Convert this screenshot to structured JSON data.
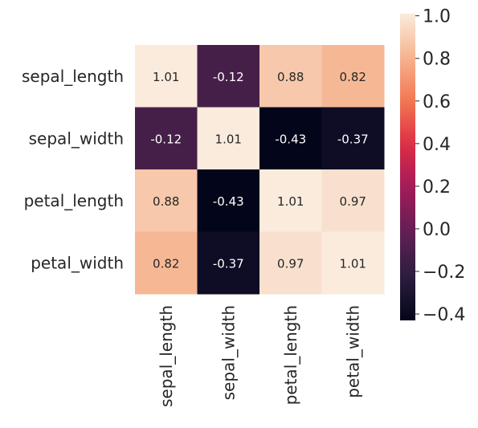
{
  "chart_data": {
    "type": "heatmap",
    "rows": [
      "sepal_length",
      "sepal_width",
      "petal_length",
      "petal_width"
    ],
    "columns": [
      "sepal_length",
      "sepal_width",
      "petal_length",
      "petal_width"
    ],
    "values": [
      [
        1.01,
        -0.12,
        0.88,
        0.82
      ],
      [
        -0.12,
        1.01,
        -0.43,
        -0.37
      ],
      [
        0.88,
        -0.43,
        1.01,
        0.97
      ],
      [
        0.82,
        -0.37,
        0.97,
        1.01
      ]
    ],
    "cell_labels": [
      [
        "1.01",
        "-0.12",
        "0.88",
        "0.82"
      ],
      [
        "-0.12",
        "1.01",
        "-0.43",
        "-0.37"
      ],
      [
        "0.88",
        "-0.43",
        "1.01",
        "0.97"
      ],
      [
        "0.82",
        "-0.37",
        "0.97",
        "1.01"
      ]
    ],
    "colorbar": {
      "min": -0.43,
      "max": 1.01,
      "ticks": [
        1.0,
        0.8,
        0.6,
        0.4,
        0.2,
        0.0,
        -0.2,
        -0.4
      ],
      "tick_labels": [
        "1.0",
        "0.8",
        "0.6",
        "0.4",
        "0.2",
        "0.0",
        "−0.2",
        "−0.4"
      ]
    },
    "colormap": [
      "#03051a",
      "#2b1e3e",
      "#611f53",
      "#a11a5b",
      "#dd2c45",
      "#f37651",
      "#f6b48e",
      "#faebdd"
    ],
    "title": "",
    "xlabel": "",
    "ylabel": ""
  }
}
